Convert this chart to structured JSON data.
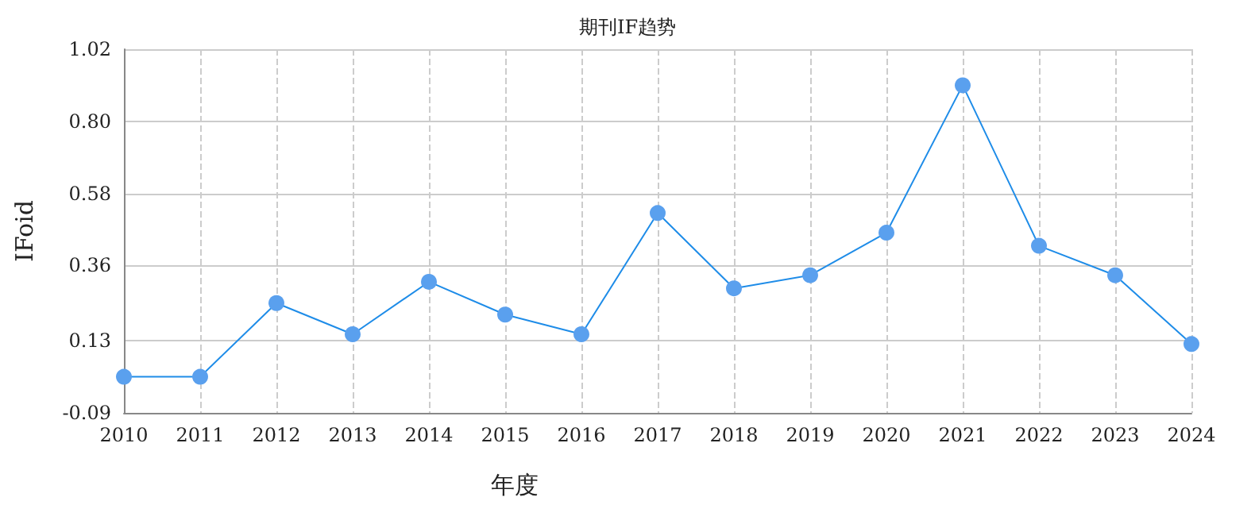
{
  "chart_data": {
    "type": "line",
    "title": "期刊IF趋势",
    "xlabel": "年度",
    "ylabel": "IFoid",
    "categories": [
      "2010",
      "2011",
      "2012",
      "2013",
      "2014",
      "2015",
      "2016",
      "2017",
      "2018",
      "2019",
      "2020",
      "2021",
      "2022",
      "2023",
      "2024"
    ],
    "series": [
      {
        "color": "#5aa0ee",
        "values": [
          0.02,
          0.02,
          0.245,
          0.15,
          0.31,
          0.21,
          0.15,
          0.52,
          0.29,
          0.33,
          0.46,
          0.91,
          0.42,
          0.33,
          0.12
        ]
      }
    ],
    "ylim": [
      -0.09,
      1.02
    ],
    "yticks": [
      -0.09,
      0.13,
      0.36,
      0.58,
      {
        "value": 0.8,
        "label": "0.80"
      },
      1.02
    ],
    "grid": true,
    "marker": "circle",
    "line_style": "solid"
  }
}
